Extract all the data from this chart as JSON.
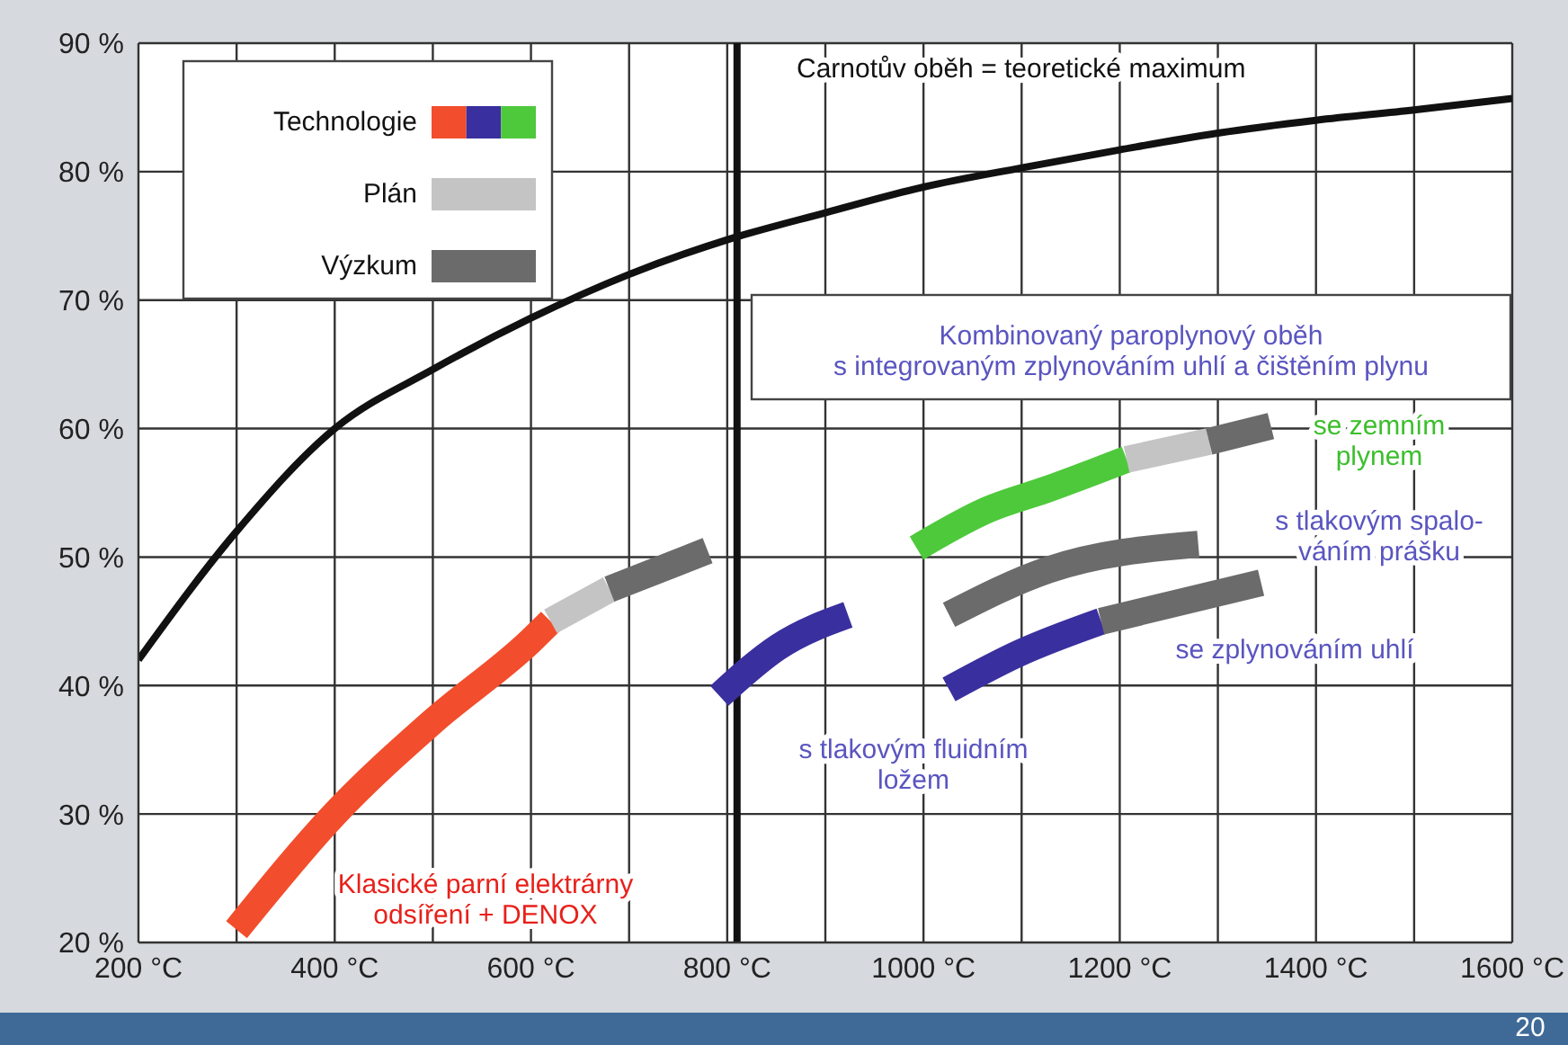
{
  "chart_data": {
    "type": "line",
    "xlim": [
      200,
      1600
    ],
    "ylim": [
      20,
      90
    ],
    "xticks": [
      {
        "value": 200,
        "label": "200 °C"
      },
      {
        "value": 300,
        "label": null
      },
      {
        "value": 400,
        "label": "400 °C"
      },
      {
        "value": 500,
        "label": null
      },
      {
        "value": 600,
        "label": "600 °C"
      },
      {
        "value": 700,
        "label": null
      },
      {
        "value": 800,
        "label": "800 °C"
      },
      {
        "value": 900,
        "label": null
      },
      {
        "value": 1000,
        "label": "1000 °C"
      },
      {
        "value": 1100,
        "label": null
      },
      {
        "value": 1200,
        "label": "1200 °C"
      },
      {
        "value": 1300,
        "label": null
      },
      {
        "value": 1400,
        "label": "1400 °C"
      },
      {
        "value": 1500,
        "label": null
      },
      {
        "value": 1600,
        "label": "1600 °C"
      }
    ],
    "yticks": [
      {
        "value": 20,
        "label": "20 %"
      },
      {
        "value": 30,
        "label": "30 %"
      },
      {
        "value": 40,
        "label": "40 %"
      },
      {
        "value": 50,
        "label": "50 %"
      },
      {
        "value": 60,
        "label": "60 %"
      },
      {
        "value": 70,
        "label": "70 %"
      },
      {
        "value": 80,
        "label": "80 %"
      },
      {
        "value": 90,
        "label": "90 %"
      }
    ],
    "grid": true,
    "legend": "top left",
    "line_style": "solid",
    "marker": "none",
    "series": [
      {
        "name": "Carnotův oběh   =   teoretické maximum",
        "color": "#111111",
        "x": [
          200,
          300,
          400,
          500,
          600,
          700,
          800,
          900,
          1000,
          1100,
          1200,
          1300,
          1400,
          1500,
          1600
        ],
        "values": [
          42,
          52,
          60,
          64.6,
          68.6,
          72,
          74.7,
          76.8,
          78.8,
          80.3,
          81.7,
          83,
          84,
          84.8,
          85.7
        ]
      },
      {
        "name": "Technologie",
        "color": "#f24d2c",
        "x": [
          300,
          400,
          500,
          600,
          620
        ],
        "values": [
          21,
          30,
          37.2,
          43.5,
          45
        ]
      },
      {
        "name": "Plán",
        "color": "#c4c4c4",
        "x": [
          620,
          680
        ],
        "values": [
          45,
          47.5
        ]
      },
      {
        "name": "Výzkum",
        "color": "#6b6b6b",
        "x": [
          680,
          780
        ],
        "values": [
          47.5,
          50.5
        ]
      },
      {
        "color": "#3a2f9e",
        "x": [
          792,
          852,
          923
        ],
        "values": [
          39.2,
          43,
          45.5
        ]
      },
      {
        "color": "#4ec93b",
        "x": [
          993,
          1066,
          1127,
          1207
        ],
        "values": [
          50.7,
          53.7,
          55.3,
          57.6
        ]
      },
      {
        "color": "#c4c4c4",
        "x": [
          1207,
          1291
        ],
        "values": [
          57.6,
          59
        ]
      },
      {
        "color": "#6b6b6b",
        "x": [
          1291,
          1354
        ],
        "values": [
          59,
          60.2
        ]
      },
      {
        "color": "#6b6b6b",
        "x": [
          1026,
          1127,
          1280
        ],
        "values": [
          45.5,
          49,
          51
        ]
      },
      {
        "color": "#3a2f9e",
        "x": [
          1026,
          1097,
          1181
        ],
        "values": [
          39.7,
          42.5,
          45
        ]
      },
      {
        "color": "#6b6b6b",
        "x": [
          1181,
          1344
        ],
        "values": [
          45,
          48
        ]
      }
    ],
    "ref_lines": [
      {
        "axis": "x",
        "value": 810,
        "label": null,
        "color": "#111111"
      }
    ],
    "annotations": [
      "Kombinovaný paroplynový oběh\ns integrovaným zplynováním uhlí a čištěním plynu",
      "se zemním\nplynem",
      "s tlakovým spalo-\nváním prášku",
      "se zplynováním uhlí",
      "s tlakovým fluidním\nložem",
      "Klasické parní elektrárny\nodsíření + DENOX",
      "20"
    ]
  }
}
